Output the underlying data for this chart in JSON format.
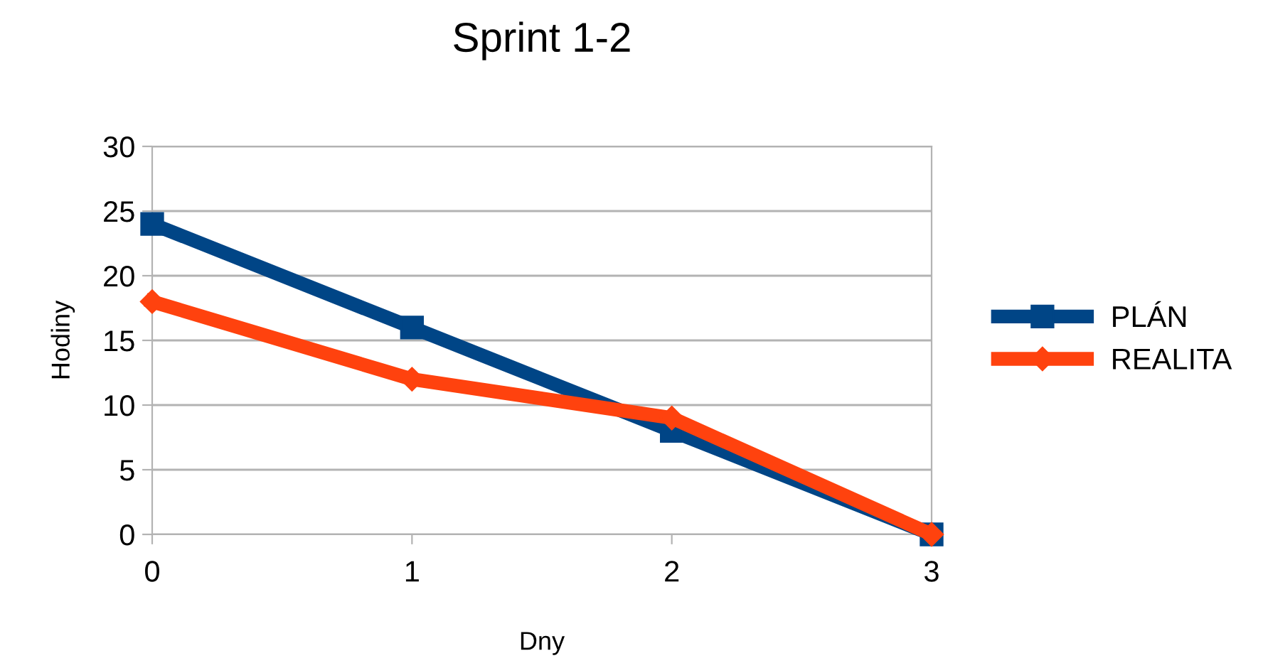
{
  "chart_data": {
    "type": "line",
    "title": "Sprint 1-2",
    "xlabel": "Dny",
    "ylabel": "Hodiny",
    "x": [
      0,
      1,
      2,
      3
    ],
    "series": [
      {
        "name": "PLÁN",
        "color": "#004586",
        "marker": "square",
        "values": [
          24,
          16,
          8,
          0
        ]
      },
      {
        "name": "REALITA",
        "color": "#ff420e",
        "marker": "diamond",
        "values": [
          18,
          12,
          9,
          0
        ]
      }
    ],
    "xlim": [
      0,
      3
    ],
    "xticks": [
      0,
      1,
      2,
      3
    ],
    "ylim": [
      0,
      30
    ],
    "yticks": [
      0,
      5,
      10,
      15,
      20,
      25,
      30
    ],
    "grid": "y",
    "legend": "right",
    "line_style": "solid"
  }
}
